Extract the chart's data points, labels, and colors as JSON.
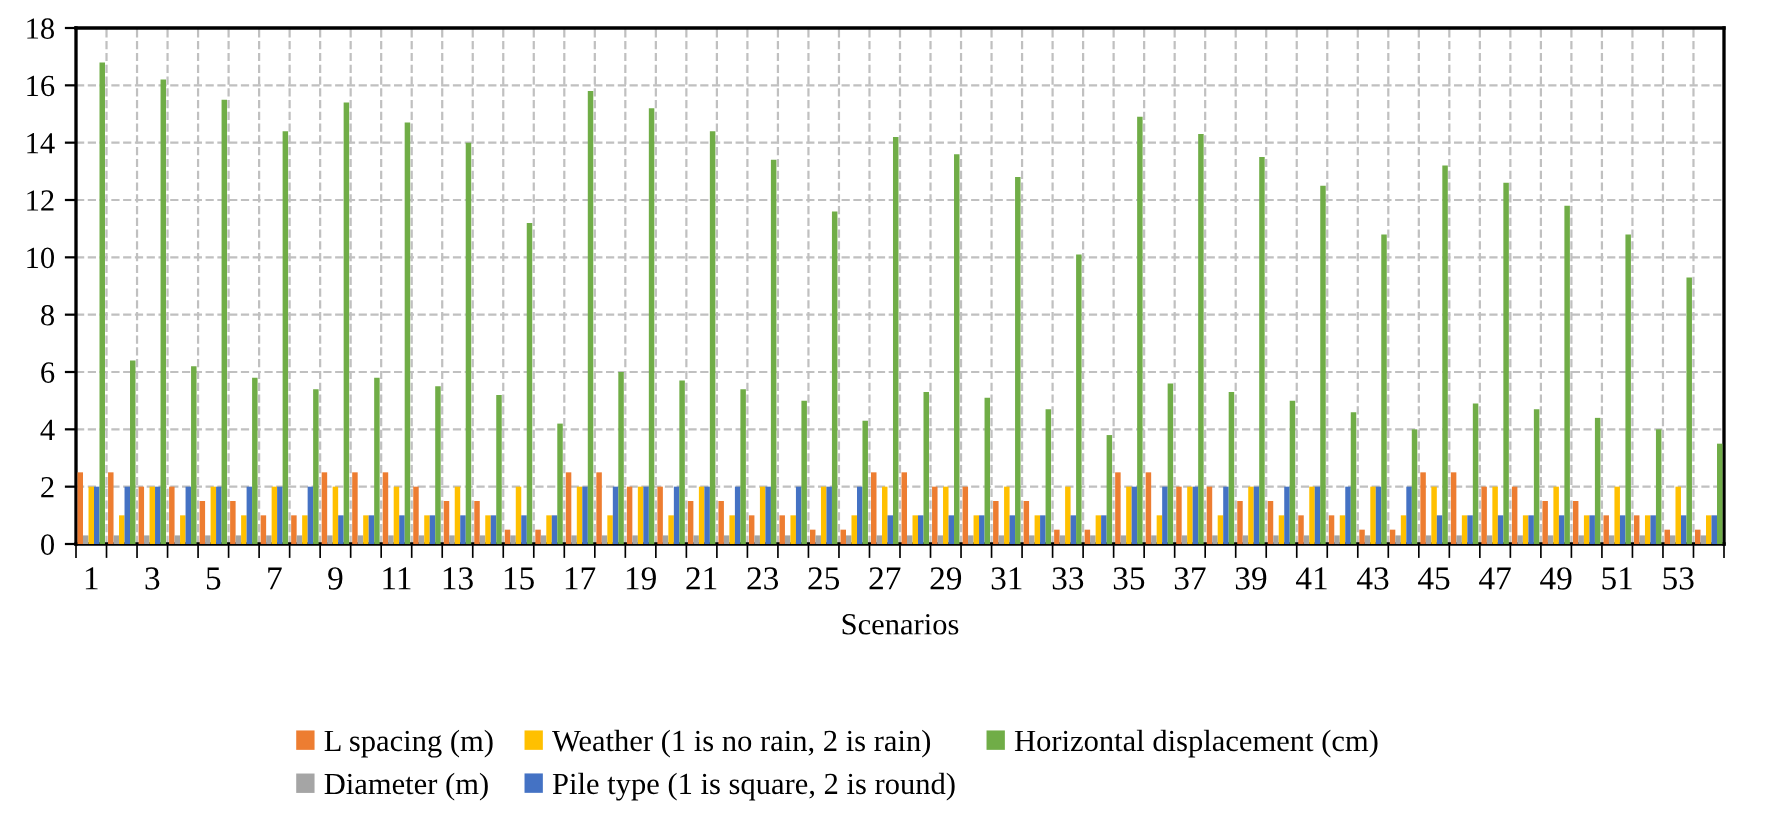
{
  "chart_data": {
    "type": "bar",
    "xlabel": "Scenarios",
    "categories": [
      "1",
      null,
      "3",
      null,
      "5",
      null,
      "7",
      null,
      "9",
      null,
      "11",
      null,
      "13",
      null,
      "15",
      null,
      "17",
      null,
      "19",
      null,
      "21",
      null,
      "23",
      null,
      "25",
      null,
      "27",
      null,
      "29",
      null,
      "31",
      null,
      "33",
      null,
      "35",
      null,
      "37",
      null,
      "39",
      null,
      "41",
      null,
      "43",
      null,
      "45",
      null,
      "47",
      null,
      "49",
      null,
      "51",
      null,
      "53",
      null
    ],
    "series": [
      {
        "name": "L spacing (m)",
        "color": "#ed7d31",
        "values": [
          2.5,
          2.5,
          2,
          2,
          1.5,
          1.5,
          1,
          1,
          2.5,
          2.5,
          2.5,
          2,
          1.5,
          1.5,
          0.5,
          0.5,
          2.5,
          2.5,
          2,
          2,
          1.5,
          1.5,
          1,
          1,
          0.5,
          0.5,
          2.5,
          2.5,
          2,
          2,
          1.5,
          1.5,
          0.5,
          0.5,
          2.5,
          2.5,
          2,
          2,
          1.5,
          1.5,
          1,
          1,
          0.5,
          0.5,
          2.5,
          2.5,
          2,
          2,
          1.5,
          1.5,
          1,
          1,
          0.5,
          0.5
        ]
      },
      {
        "name": "Diameter (m)",
        "color": "#a5a5a5",
        "values": [
          0.3,
          0.3,
          0.3,
          0.3,
          0.3,
          0.3,
          0.3,
          0.3,
          0.3,
          0.3,
          0.3,
          0.3,
          0.3,
          0.3,
          0.3,
          0.3,
          0.3,
          0.3,
          0.3,
          0.3,
          0.3,
          0.3,
          0.3,
          0.3,
          0.3,
          0.3,
          0.3,
          0.3,
          0.3,
          0.3,
          0.3,
          0.3,
          0.3,
          0.3,
          0.3,
          0.3,
          0.3,
          0.3,
          0.3,
          0.3,
          0.3,
          0.3,
          0.3,
          0.3,
          0.3,
          0.3,
          0.3,
          0.3,
          0.3,
          0.3,
          0.3,
          0.3,
          0.3,
          0.3
        ]
      },
      {
        "name": "Weather (1 is no rain, 2 is rain)",
        "color": "#ffc000",
        "values": [
          2,
          1,
          2,
          1,
          2,
          1,
          2,
          1,
          2,
          1,
          2,
          1,
          2,
          1,
          2,
          1,
          2,
          1,
          2,
          1,
          2,
          1,
          2,
          1,
          2,
          1,
          2,
          1,
          2,
          1,
          2,
          1,
          2,
          1,
          2,
          1,
          2,
          1,
          2,
          1,
          2,
          1,
          2,
          1,
          2,
          1,
          2,
          1,
          2,
          1,
          2,
          1,
          2,
          1
        ]
      },
      {
        "name": "Pile type (1 is square, 2 is round)",
        "color": "#4472c4",
        "values": [
          2,
          2,
          2,
          2,
          2,
          2,
          2,
          2,
          1,
          1,
          1,
          1,
          1,
          1,
          1,
          1,
          2,
          2,
          2,
          2,
          2,
          2,
          2,
          2,
          2,
          2,
          1,
          1,
          1,
          1,
          1,
          1,
          1,
          1,
          2,
          2,
          2,
          2,
          2,
          2,
          2,
          2,
          2,
          2,
          1,
          1,
          1,
          1,
          1,
          1,
          1,
          1,
          1,
          1
        ]
      },
      {
        "name": "Horizontal displacement (cm)",
        "color": "#70ad47",
        "values": [
          16.8,
          6.4,
          16.2,
          6.2,
          15.5,
          5.8,
          14.4,
          5.4,
          15.4,
          5.8,
          14.7,
          5.5,
          14.0,
          5.2,
          11.2,
          4.2,
          15.8,
          6.0,
          15.2,
          5.7,
          14.4,
          5.4,
          13.4,
          5.0,
          11.6,
          4.3,
          14.2,
          5.3,
          13.6,
          5.1,
          12.8,
          4.7,
          10.1,
          3.8,
          14.9,
          5.6,
          14.3,
          5.3,
          13.5,
          5.0,
          12.5,
          4.6,
          10.8,
          4.0,
          13.2,
          4.9,
          12.6,
          4.7,
          11.8,
          4.4,
          10.8,
          4.0,
          9.3,
          3.5
        ]
      }
    ],
    "ylim": [
      0,
      18
    ],
    "yticks": [
      0,
      2,
      4,
      6,
      8,
      10,
      12,
      14,
      16,
      18
    ],
    "grid": true,
    "legend": "bottom"
  }
}
